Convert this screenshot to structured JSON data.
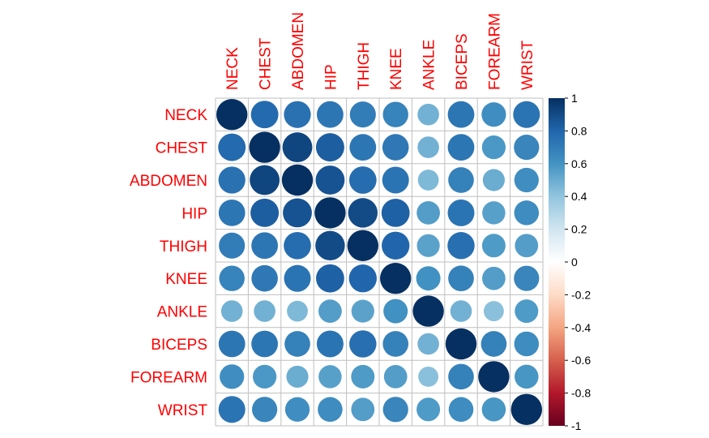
{
  "chart_data": {
    "type": "heatmap",
    "style": "correlation circles",
    "variables": [
      "NECK",
      "CHEST",
      "ABDOMEN",
      "HIP",
      "THIGH",
      "KNEE",
      "ANKLE",
      "BICEPS",
      "FOREARM",
      "WRIST"
    ],
    "matrix": [
      [
        1.0,
        0.78,
        0.75,
        0.73,
        0.7,
        0.67,
        0.48,
        0.73,
        0.62,
        0.74
      ],
      [
        0.78,
        1.0,
        0.92,
        0.83,
        0.73,
        0.72,
        0.48,
        0.73,
        0.58,
        0.66
      ],
      [
        0.75,
        0.92,
        1.0,
        0.87,
        0.77,
        0.74,
        0.45,
        0.68,
        0.5,
        0.62
      ],
      [
        0.73,
        0.83,
        0.87,
        1.0,
        0.9,
        0.82,
        0.56,
        0.74,
        0.55,
        0.63
      ],
      [
        0.7,
        0.73,
        0.77,
        0.9,
        1.0,
        0.8,
        0.54,
        0.76,
        0.57,
        0.56
      ],
      [
        0.67,
        0.72,
        0.74,
        0.82,
        0.8,
        1.0,
        0.61,
        0.68,
        0.56,
        0.66
      ],
      [
        0.48,
        0.48,
        0.45,
        0.56,
        0.54,
        0.61,
        1.0,
        0.48,
        0.42,
        0.57
      ],
      [
        0.73,
        0.73,
        0.68,
        0.74,
        0.76,
        0.68,
        0.48,
        1.0,
        0.68,
        0.63
      ],
      [
        0.62,
        0.58,
        0.5,
        0.55,
        0.57,
        0.56,
        0.42,
        0.68,
        1.0,
        0.59
      ],
      [
        0.74,
        0.66,
        0.62,
        0.63,
        0.56,
        0.66,
        0.57,
        0.63,
        0.59,
        1.0
      ]
    ],
    "colorbar": {
      "ticks": [
        1,
        0.8,
        0.6,
        0.4,
        0.2,
        0,
        -0.2,
        -0.4,
        -0.6,
        -0.8,
        -1
      ],
      "tick_labels": [
        "1",
        "0.8",
        "0.6",
        "0.4",
        "0.2",
        "0",
        "-0.2",
        "-0.4",
        "-0.6",
        "-0.8",
        "-1"
      ],
      "range": [
        -1,
        1
      ]
    },
    "colors": {
      "label": "#ff0000",
      "grid": "#bfbfbf",
      "palette": [
        "#67001f",
        "#b2182b",
        "#d6604d",
        "#f4a582",
        "#fddbc7",
        "#ffffff",
        "#d1e5f0",
        "#92c5de",
        "#4393c3",
        "#2166ac",
        "#053061"
      ]
    }
  }
}
